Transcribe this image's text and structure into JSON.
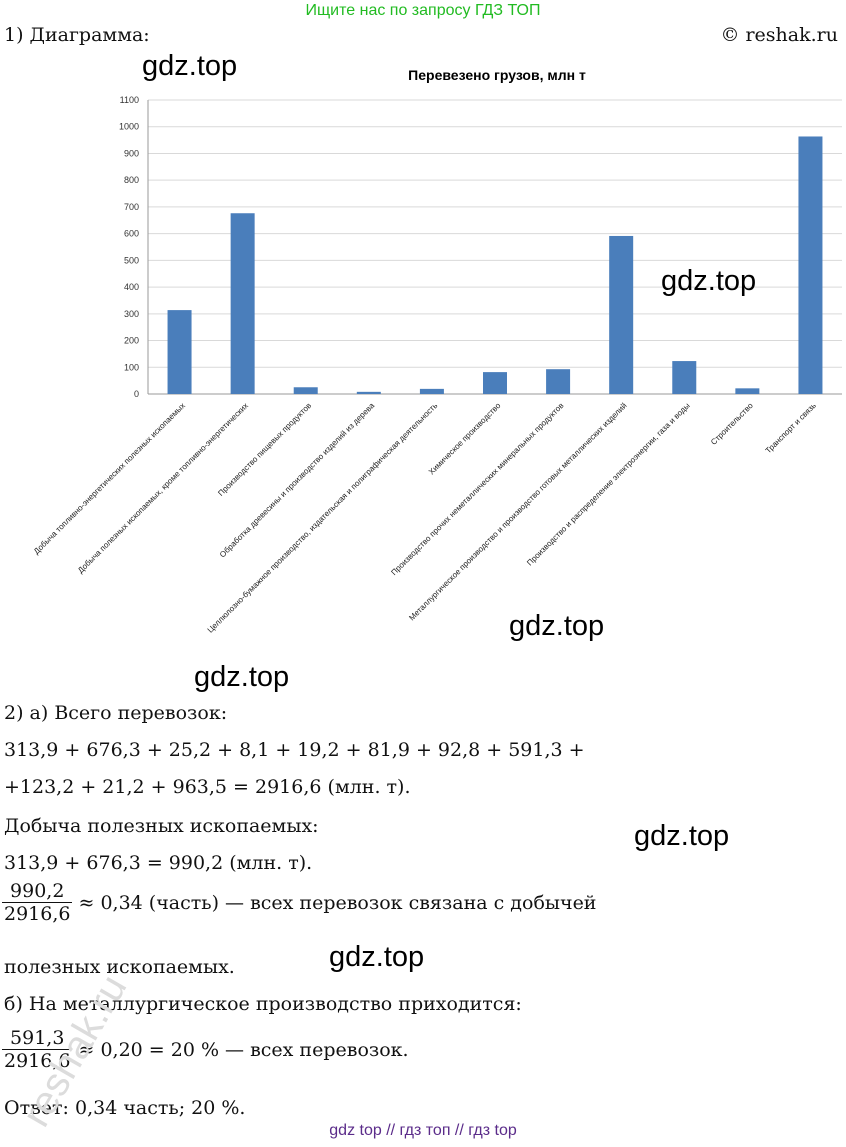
{
  "banner": "Ищите нас по запросу ГДЗ ТОП",
  "copyright": "© reshak.ru",
  "part1_label": "1) Диаграмма:",
  "watermark": "gdz.top",
  "side_watermark": "reshak.ru",
  "chart_data": {
    "type": "bar",
    "title": "Перевезено грузов, млн т",
    "categories": [
      "Добыча топливно-энергетических  полезных ископаемых",
      "Добыча полезных ископаемых, кроме топливно-энергетических",
      "Производство пищевых продуктов",
      "Обработка древесины  и производство изделий из дерева",
      "Целлюлозно-бумажное производство, издательская и полиграфическая деятельность",
      "Химическое производство",
      "Производство прочих неметаллических минеральных продуктов",
      "Металлургическое производство и производство готовых металлических изделий",
      "Производство и распределение  электроэнергии, газа и воды",
      "Строительство",
      "Транспорт и связь"
    ],
    "values": [
      313.9,
      676.3,
      25.2,
      8.1,
      19.2,
      81.9,
      92.8,
      591.3,
      123.2,
      21.2,
      963.5
    ],
    "yticks": [
      "0",
      "100",
      "200",
      "300",
      "400",
      "500",
      "600",
      "700",
      "800",
      "900",
      "1000",
      "1100"
    ],
    "ylim": [
      0,
      1100
    ],
    "color": "#4a7ebb",
    "grid": true
  },
  "solution": {
    "a_heading": "2) а) Всего перевозок:",
    "sum_line1": "313,9 + 676,3 + 25,2 + 8,1 + 19,2 + 81,9 + 92,8 + 591,3 +",
    "sum_line2": "+123,2 + 21,2 + 963,5 = 2916,6 (млн. т).",
    "mining_heading": "Добыча полезных ископаемых:",
    "mining_sum": "313,9 + 676,3 = 990,2 (млн. т).",
    "frac1_num": "990,2",
    "frac1_den": "2916,6",
    "frac1_text": "≈ 0,34 (часть) — всех перевозок связана с добычей",
    "frac1_cont": "полезных ископаемых.",
    "b_heading": "б) На металлургическое производство приходится:",
    "frac2_num": "591,3",
    "frac2_den": "2916,6",
    "frac2_text": "≈ 0,20 = 20 % — всех перевозок.",
    "answer": "Ответ: 0,34 часть;   20 %."
  },
  "footer": "gdz top  //  гдз топ  //  гдз top"
}
